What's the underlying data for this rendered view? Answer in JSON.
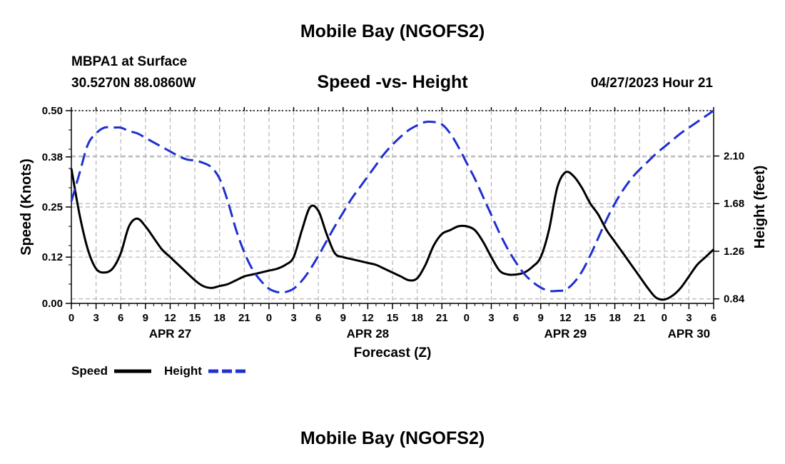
{
  "page": {
    "title": "Mobile Bay (NGOFS2)",
    "bottom_title": "Mobile Bay (NGOFS2)",
    "station": "MBPA1 at Surface",
    "coords": "30.5270N  88.0860W",
    "subtitle": "Speed -vs- Height",
    "timestamp": "04/27/2023 Hour 21"
  },
  "chart_data": {
    "type": "line",
    "title": "Speed -vs- Height",
    "xlabel": "Forecast (Z)",
    "ylabel": "Speed (Knots)",
    "y2label": "Height (feet)",
    "xlim": [
      0,
      78
    ],
    "ylim": [
      0,
      0.5
    ],
    "y2lim": [
      0.8,
      2.5
    ],
    "x_ticks": [
      0,
      3,
      6,
      9,
      12,
      15,
      18,
      21,
      24,
      27,
      30,
      33,
      36,
      39,
      42,
      45,
      48,
      51,
      54,
      57,
      60,
      63,
      66,
      69,
      72,
      75,
      78
    ],
    "x_tick_labels": [
      "0",
      "3",
      "6",
      "9",
      "12",
      "15",
      "18",
      "21",
      "0",
      "3",
      "6",
      "9",
      "12",
      "15",
      "18",
      "21",
      "0",
      "3",
      "6",
      "9",
      "12",
      "15",
      "18",
      "21",
      "0",
      "3",
      "6"
    ],
    "date_labels": [
      {
        "x": 12,
        "label": "APR 27"
      },
      {
        "x": 36,
        "label": "APR 28"
      },
      {
        "x": 60,
        "label": "APR 29"
      },
      {
        "x": 75,
        "label": "APR 30"
      }
    ],
    "y_ticks": [
      0.0,
      0.12,
      0.25,
      0.38,
      0.5
    ],
    "y_tick_labels": [
      "0.00",
      "0.12",
      "0.25",
      "0.38",
      "0.50"
    ],
    "y2_ticks": [
      0.84,
      1.26,
      1.68,
      2.1
    ],
    "y2_tick_labels": [
      "0.84",
      "1.26",
      "1.68",
      "2.10"
    ],
    "grid": true,
    "series": [
      {
        "name": "Speed",
        "axis": "left",
        "color": "#000000",
        "dash": "solid",
        "x": [
          0,
          1,
          2,
          3,
          4,
          5,
          6,
          7,
          8,
          9,
          10,
          11,
          12,
          13,
          14,
          15,
          16,
          17,
          18,
          19,
          20,
          21,
          22,
          23,
          24,
          25,
          26,
          27,
          28,
          29,
          30,
          31,
          32,
          33,
          34,
          35,
          36,
          37,
          38,
          39,
          40,
          41,
          42,
          43,
          44,
          45,
          46,
          47,
          48,
          49,
          50,
          51,
          52,
          53,
          54,
          55,
          56,
          57,
          58,
          59,
          60,
          61,
          62,
          63,
          64,
          65,
          66,
          67,
          68,
          69,
          70,
          71,
          72,
          73,
          74,
          75,
          76,
          77,
          78
        ],
        "values": [
          0.35,
          0.23,
          0.14,
          0.09,
          0.08,
          0.09,
          0.13,
          0.2,
          0.22,
          0.2,
          0.17,
          0.14,
          0.12,
          0.1,
          0.08,
          0.06,
          0.045,
          0.04,
          0.045,
          0.05,
          0.06,
          0.07,
          0.075,
          0.08,
          0.085,
          0.09,
          0.1,
          0.12,
          0.19,
          0.25,
          0.24,
          0.18,
          0.13,
          0.12,
          0.115,
          0.11,
          0.105,
          0.1,
          0.09,
          0.08,
          0.07,
          0.06,
          0.065,
          0.1,
          0.15,
          0.18,
          0.19,
          0.2,
          0.2,
          0.19,
          0.16,
          0.12,
          0.085,
          0.075,
          0.075,
          0.08,
          0.095,
          0.12,
          0.19,
          0.3,
          0.34,
          0.33,
          0.3,
          0.26,
          0.23,
          0.19,
          0.16,
          0.13,
          0.1,
          0.07,
          0.04,
          0.015,
          0.01,
          0.02,
          0.04,
          0.07,
          0.1,
          0.12,
          0.14
        ]
      },
      {
        "name": "Height",
        "axis": "right",
        "color": "#1f2fd0",
        "dash": "dashed",
        "x": [
          0,
          1,
          2,
          3,
          4,
          5,
          6,
          7,
          8,
          9,
          10,
          11,
          12,
          13,
          14,
          15,
          16,
          17,
          18,
          19,
          20,
          21,
          22,
          23,
          24,
          25,
          26,
          27,
          28,
          29,
          30,
          31,
          32,
          33,
          34,
          35,
          36,
          37,
          38,
          39,
          40,
          41,
          42,
          43,
          44,
          45,
          46,
          47,
          48,
          49,
          50,
          51,
          52,
          53,
          54,
          55,
          56,
          57,
          58,
          59,
          60,
          61,
          62,
          63,
          64,
          65,
          66,
          67,
          68,
          69,
          70,
          71,
          72,
          73,
          74,
          75,
          76,
          77,
          78
        ],
        "values": [
          1.7,
          1.95,
          2.2,
          2.3,
          2.35,
          2.35,
          2.35,
          2.32,
          2.3,
          2.26,
          2.22,
          2.18,
          2.14,
          2.1,
          2.07,
          2.06,
          2.04,
          2.0,
          1.9,
          1.7,
          1.45,
          1.25,
          1.1,
          1.0,
          0.93,
          0.9,
          0.9,
          0.93,
          1.0,
          1.1,
          1.22,
          1.35,
          1.48,
          1.6,
          1.72,
          1.82,
          1.92,
          2.02,
          2.12,
          2.2,
          2.27,
          2.33,
          2.37,
          2.4,
          2.4,
          2.38,
          2.3,
          2.18,
          2.04,
          1.9,
          1.74,
          1.58,
          1.42,
          1.28,
          1.16,
          1.06,
          0.99,
          0.94,
          0.91,
          0.91,
          0.92,
          0.98,
          1.08,
          1.22,
          1.38,
          1.54,
          1.68,
          1.8,
          1.9,
          1.98,
          2.05,
          2.12,
          2.18,
          2.24,
          2.3,
          2.35,
          2.4,
          2.45,
          2.5
        ]
      }
    ],
    "legend": [
      {
        "label": "Speed",
        "color": "#000000",
        "dash": "solid"
      },
      {
        "label": "Height",
        "color": "#1f2fd0",
        "dash": "dashed"
      }
    ],
    "legend_position": "bottom-left"
  }
}
